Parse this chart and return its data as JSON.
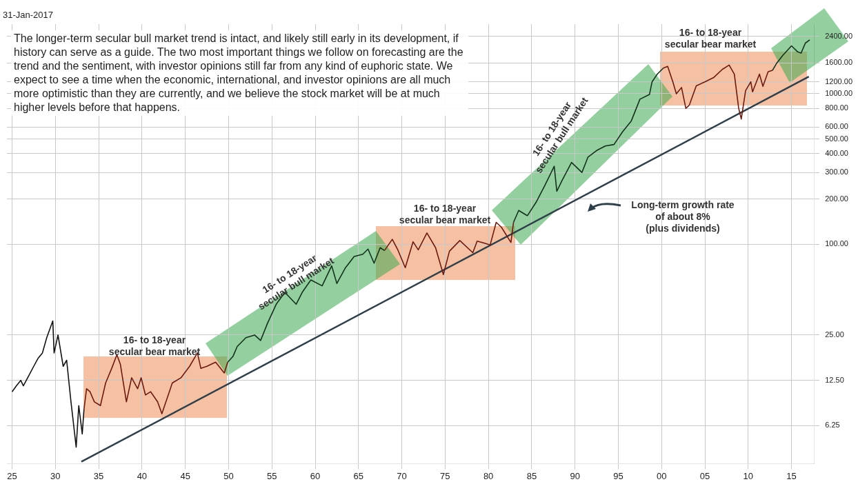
{
  "chart_data": {
    "type": "line",
    "subtitle": "31-Jan-2017",
    "xlim": [
      1924.4,
      2017.6
    ],
    "xticks": [
      {
        "value": 1925,
        "label": "25"
      },
      {
        "value": 1930,
        "label": "30"
      },
      {
        "value": 1935,
        "label": "35"
      },
      {
        "value": 1940,
        "label": "40"
      },
      {
        "value": 1945,
        "label": "45"
      },
      {
        "value": 1950,
        "label": "50"
      },
      {
        "value": 1955,
        "label": "55"
      },
      {
        "value": 1960,
        "label": "60"
      },
      {
        "value": 1965,
        "label": "65"
      },
      {
        "value": 1970,
        "label": "70"
      },
      {
        "value": 1975,
        "label": "75"
      },
      {
        "value": 1980,
        "label": "80"
      },
      {
        "value": 1985,
        "label": "85"
      },
      {
        "value": 1990,
        "label": "90"
      },
      {
        "value": 1995,
        "label": "95"
      },
      {
        "value": 2000,
        "label": "00"
      },
      {
        "value": 2005,
        "label": "05"
      },
      {
        "value": 2010,
        "label": "10"
      },
      {
        "value": 2015,
        "label": "15"
      }
    ],
    "log": "y",
    "ylim": [
      3.5,
      2900
    ],
    "yticks": [
      {
        "value": 6.25,
        "label": "6.25"
      },
      {
        "value": 12.5,
        "label": "12.50"
      },
      {
        "value": 25,
        "label": "25.00"
      },
      {
        "value": 100,
        "label": "100.00"
      },
      {
        "value": 200,
        "label": "200.00"
      },
      {
        "value": 300,
        "label": "300.00"
      },
      {
        "value": 400,
        "label": "400.00"
      },
      {
        "value": 500,
        "label": "500.00"
      },
      {
        "value": 600,
        "label": "600.00"
      },
      {
        "value": 800,
        "label": "800.00"
      },
      {
        "value": 1000,
        "label": "1000.00"
      },
      {
        "value": 1200,
        "label": "1200.00"
      },
      {
        "value": 1600,
        "label": "1600.00"
      },
      {
        "value": 2400,
        "label": "2400.00"
      }
    ],
    "grid": true,
    "legend": false,
    "marker": "none",
    "line_style": "solid",
    "series": [
      {
        "color": "#111111",
        "x": [
          1925,
          1925.5,
          1926,
          1926.3,
          1926.8,
          1927.5,
          1928,
          1928.5,
          1929,
          1929.7,
          1929.85,
          1930.3,
          1930.9,
          1931.3,
          1931.8,
          1932.4,
          1932.7,
          1933.1,
          1933.3
        ],
        "values": [
          10.5,
          11.5,
          12.5,
          11.5,
          13,
          15.5,
          17.5,
          19,
          24,
          31,
          19,
          25,
          15.5,
          17,
          9,
          4.5,
          8.5,
          5.5,
          8
        ]
      },
      {
        "color": "#6b1a10",
        "x": [
          1933.3,
          1933.6,
          1934,
          1934.5,
          1935.2,
          1935.8,
          1936.5,
          1937.1,
          1937.5,
          1938.2,
          1938.8,
          1939.5,
          1939.9,
          1940.4,
          1941,
          1941.8,
          1942.3,
          1942.9,
          1943.5,
          1944.5,
          1945.5,
          1946.4,
          1946.8,
          1947.5,
          1948.5,
          1949.5,
          1949.9
        ],
        "values": [
          8,
          11,
          10.5,
          9,
          8.5,
          12,
          15,
          18.5,
          16,
          9,
          13,
          11,
          13,
          10,
          10.5,
          9,
          7.5,
          9.5,
          12,
          13,
          15.5,
          19,
          15,
          15.5,
          16.5,
          14,
          16.5
        ]
      },
      {
        "color": "#10321a",
        "x": [
          1949.9,
          1950.5,
          1951,
          1952,
          1953,
          1953.7,
          1954.5,
          1955.5,
          1956.5,
          1957.8,
          1958.5,
          1959.5,
          1960.8,
          1961.9,
          1962.5,
          1963.5,
          1964.5,
          1965.5,
          1966.1,
          1966.8,
          1967.5,
          1968
        ],
        "values": [
          16.5,
          18,
          21,
          24,
          25,
          23,
          30,
          40,
          48,
          40,
          48,
          58,
          53,
          72,
          55,
          70,
          83,
          86,
          93,
          75,
          95,
          91
        ]
      },
      {
        "color": "#6b1a10",
        "x": [
          1968,
          1968.9,
          1969.5,
          1970.4,
          1971.3,
          1971.9,
          1972.9,
          1973.9,
          1974.8,
          1975.5,
          1976.7,
          1978.2,
          1978.7,
          1979.5,
          1980.2,
          1980.9,
          1981.5,
          1982.6,
          1982.9
        ],
        "values": [
          91,
          108,
          93,
          70,
          104,
          92,
          119,
          95,
          63,
          90,
          106,
          88,
          105,
          102,
          99,
          140,
          130,
          103,
          140
        ]
      },
      {
        "color": "#10321a",
        "x": [
          1982.9,
          1983.5,
          1984.5,
          1985.5,
          1986.5,
          1987.6,
          1987.9,
          1988.5,
          1989.6,
          1990.8,
          1991.5,
          1992.5,
          1993.5,
          1994.5,
          1995.5,
          1996.5,
          1997.5,
          1998.6,
          1998.9,
          1999.5,
          2000.2
        ],
        "values": [
          140,
          168,
          155,
          190,
          245,
          330,
          225,
          265,
          350,
          300,
          380,
          420,
          450,
          460,
          560,
          660,
          920,
          990,
          1200,
          1350,
          1480
        ]
      },
      {
        "color": "#6b1a10",
        "x": [
          2000.2,
          2000.7,
          2001.3,
          2001.7,
          2002.3,
          2002.8,
          2003.2,
          2004,
          2005,
          2006,
          2007,
          2007.8,
          2008.4,
          2008.9,
          2009.2,
          2009.7,
          2010.3,
          2010.5,
          2011.3,
          2011.7,
          2012.3,
          2012.8
        ],
        "values": [
          1480,
          1520,
          1200,
          1000,
          1100,
          800,
          840,
          1130,
          1200,
          1280,
          1450,
          1550,
          1350,
          800,
          680,
          1050,
          1200,
          1030,
          1350,
          1120,
          1400,
          1430
        ]
      },
      {
        "color": "#10321a",
        "x": [
          2012.8,
          2013.3,
          2014,
          2015,
          2015.7,
          2016.1,
          2016.6,
          2017.1
        ],
        "values": [
          1430,
          1600,
          1800,
          2080,
          1900,
          1860,
          2170,
          2280
        ]
      },
      {
        "color": "#2f3f4a",
        "x": [
          1933,
          2017
        ],
        "values": [
          3.6,
          1300
        ]
      }
    ],
    "annotations": [
      "The longer-term secular bull market trend is intact, and likely still early in its development, if history can serve as a guide. The two most important things we follow on forecasting are the trend and the sentiment, with investor opinions still far from any kind of euphoric state. We expect to see a time when the economic, international, and investor opinions are all much more optimistic than they are currently, and we believe the stock market will be at much higher levels before that happens.",
      "16- to 18-year\nsecular bear market",
      "16- to 18-year\nsecular bull market",
      "16- to 18-year\nsecular bear market",
      "16- to 18-year\nsecular bull market",
      "16- to 18-year\nsecular bear market",
      "Long-term growth rate\nof about 8%\n(plus dividends)"
    ]
  }
}
